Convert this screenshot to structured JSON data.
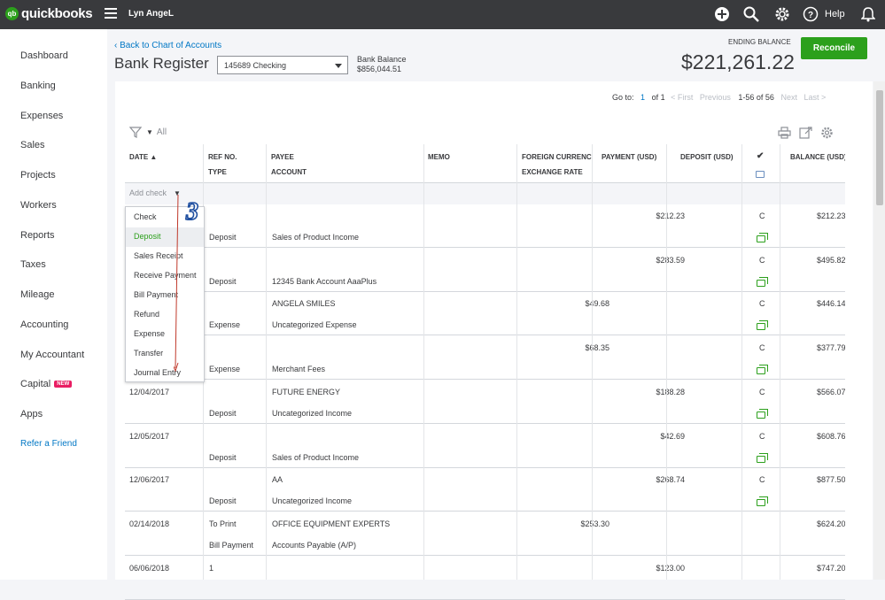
{
  "app": {
    "logo_small": "intuit",
    "logo": "quickbooks",
    "company": "Lyn AngeL",
    "help": "Help"
  },
  "sidebar": {
    "items": [
      {
        "label": "Dashboard"
      },
      {
        "label": "Banking"
      },
      {
        "label": "Expenses"
      },
      {
        "label": "Sales"
      },
      {
        "label": "Projects"
      },
      {
        "label": "Workers"
      },
      {
        "label": "Reports"
      },
      {
        "label": "Taxes"
      },
      {
        "label": "Mileage"
      },
      {
        "label": "Accounting"
      },
      {
        "label": "My Accountant"
      },
      {
        "label": "Capital",
        "badge": "NEW"
      },
      {
        "label": "Apps"
      }
    ],
    "refer": "Refer a Friend"
  },
  "header": {
    "back": "Back to Chart of Accounts",
    "title": "Bank Register",
    "account": "145689 Checking",
    "bank_balance_label": "Bank Balance",
    "bank_balance": "$856,044.51",
    "ending_label": "ENDING BALANCE",
    "ending_value": "$221,261.22",
    "reconcile": "Reconcile"
  },
  "pager": {
    "goto": "Go to:",
    "page": "1",
    "of": "of 1",
    "first": "< First",
    "prev": "Previous",
    "range": "1-56 of 56",
    "next": "Next",
    "last": "Last >"
  },
  "filter": {
    "label": "All"
  },
  "columns": {
    "date": "DATE",
    "ref": "REF NO.",
    "type": "TYPE",
    "payee": "PAYEE",
    "account": "ACCOUNT",
    "memo": "MEMO",
    "foreign": "FOREIGN CURRENCY",
    "exchange": "EXCHANGE RATE",
    "payment": "PAYMENT (USD)",
    "deposit": "DEPOSIT (USD)",
    "check": "✔",
    "balance": "BALANCE (USD)"
  },
  "add_check": "Add check",
  "dropdown": [
    "Check",
    "Deposit",
    "Sales Receipt",
    "Receive Payment",
    "Bill Payment",
    "Refund",
    "Expense",
    "Transfer",
    "Journal Entry"
  ],
  "annotation": "3",
  "rows": [
    {
      "date": "",
      "ref": "",
      "type": "Deposit",
      "payee": "",
      "account": "Sales of Product Income",
      "payment": "",
      "deposit": "$212.23",
      "status": "C",
      "balance": "$212.23"
    },
    {
      "date": "",
      "ref": "",
      "type": "Deposit",
      "payee": "",
      "account": "12345 Bank Account AaaPlus",
      "payment": "",
      "deposit": "$283.59",
      "status": "C",
      "balance": "$495.82"
    },
    {
      "date": "",
      "ref": "",
      "type": "Expense",
      "payee": "ANGELA SMILES",
      "account": "Uncategorized Expense",
      "payment": "$49.68",
      "deposit": "",
      "status": "C",
      "balance": "$446.14"
    },
    {
      "date": "",
      "ref": "",
      "type": "Expense",
      "payee": "",
      "account": "Merchant Fees",
      "payment": "$68.35",
      "deposit": "",
      "status": "C",
      "balance": "$377.79"
    },
    {
      "date": "12/04/2017",
      "ref": "",
      "type": "Deposit",
      "payee": "FUTURE ENERGY",
      "account": "Uncategorized Income",
      "payment": "",
      "deposit": "$188.28",
      "status": "C",
      "balance": "$566.07"
    },
    {
      "date": "12/05/2017",
      "ref": "",
      "type": "Deposit",
      "payee": "",
      "account": "Sales of Product Income",
      "payment": "",
      "deposit": "$42.69",
      "status": "C",
      "balance": "$608.76"
    },
    {
      "date": "12/06/2017",
      "ref": "",
      "type": "Deposit",
      "payee": "AA",
      "account": "Uncategorized Income",
      "payment": "",
      "deposit": "$268.74",
      "status": "C",
      "balance": "$877.50"
    },
    {
      "date": "02/14/2018",
      "ref": "To Print",
      "type": "Bill Payment",
      "payee": "OFFICE EQUIPMENT EXPERTS",
      "account": "Accounts Payable (A/P)",
      "payment": "$253.30",
      "deposit": "",
      "status": "",
      "balance": "$624.20"
    },
    {
      "date": "06/06/2018",
      "ref": "1",
      "type": "",
      "payee": "",
      "account": "",
      "payment": "",
      "deposit": "$123.00",
      "status": "",
      "balance": "$747.20"
    }
  ]
}
